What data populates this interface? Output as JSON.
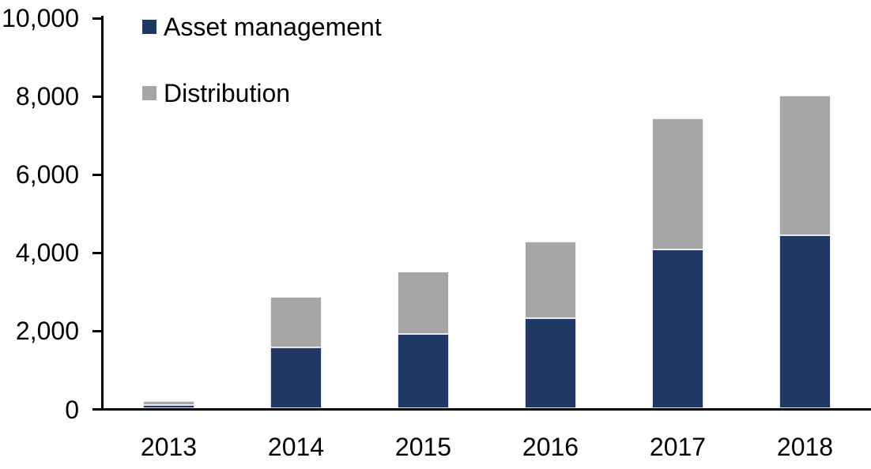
{
  "chart_data": {
    "type": "bar",
    "stacked": true,
    "title": "",
    "xlabel": "",
    "ylabel": "",
    "categories": [
      "2013",
      "2014",
      "2015",
      "2016",
      "2017",
      "2018"
    ],
    "series": [
      {
        "name": "Asset management",
        "color": "#203864",
        "values": [
          80,
          1550,
          1900,
          2300,
          4050,
          4420
        ]
      },
      {
        "name": "Distribution",
        "color": "#A6A6A6",
        "values": [
          100,
          1300,
          1600,
          1950,
          3350,
          3580
        ]
      }
    ],
    "totals": [
      180,
      2850,
      3500,
      4250,
      7400,
      8000
    ],
    "ylim": [
      0,
      10000
    ],
    "yticks": [
      {
        "label": "0",
        "value": 0
      },
      {
        "label": "2,000",
        "value": 2000
      },
      {
        "label": "4,000",
        "value": 4000
      },
      {
        "label": "6,000",
        "value": 6000
      },
      {
        "label": "8,000",
        "value": 8000
      },
      {
        "label": "10,000",
        "value": 10000
      }
    ],
    "grid": false,
    "legend_position": "top-left",
    "axis_color": "#000000",
    "background_color": "#FFFFFF"
  }
}
